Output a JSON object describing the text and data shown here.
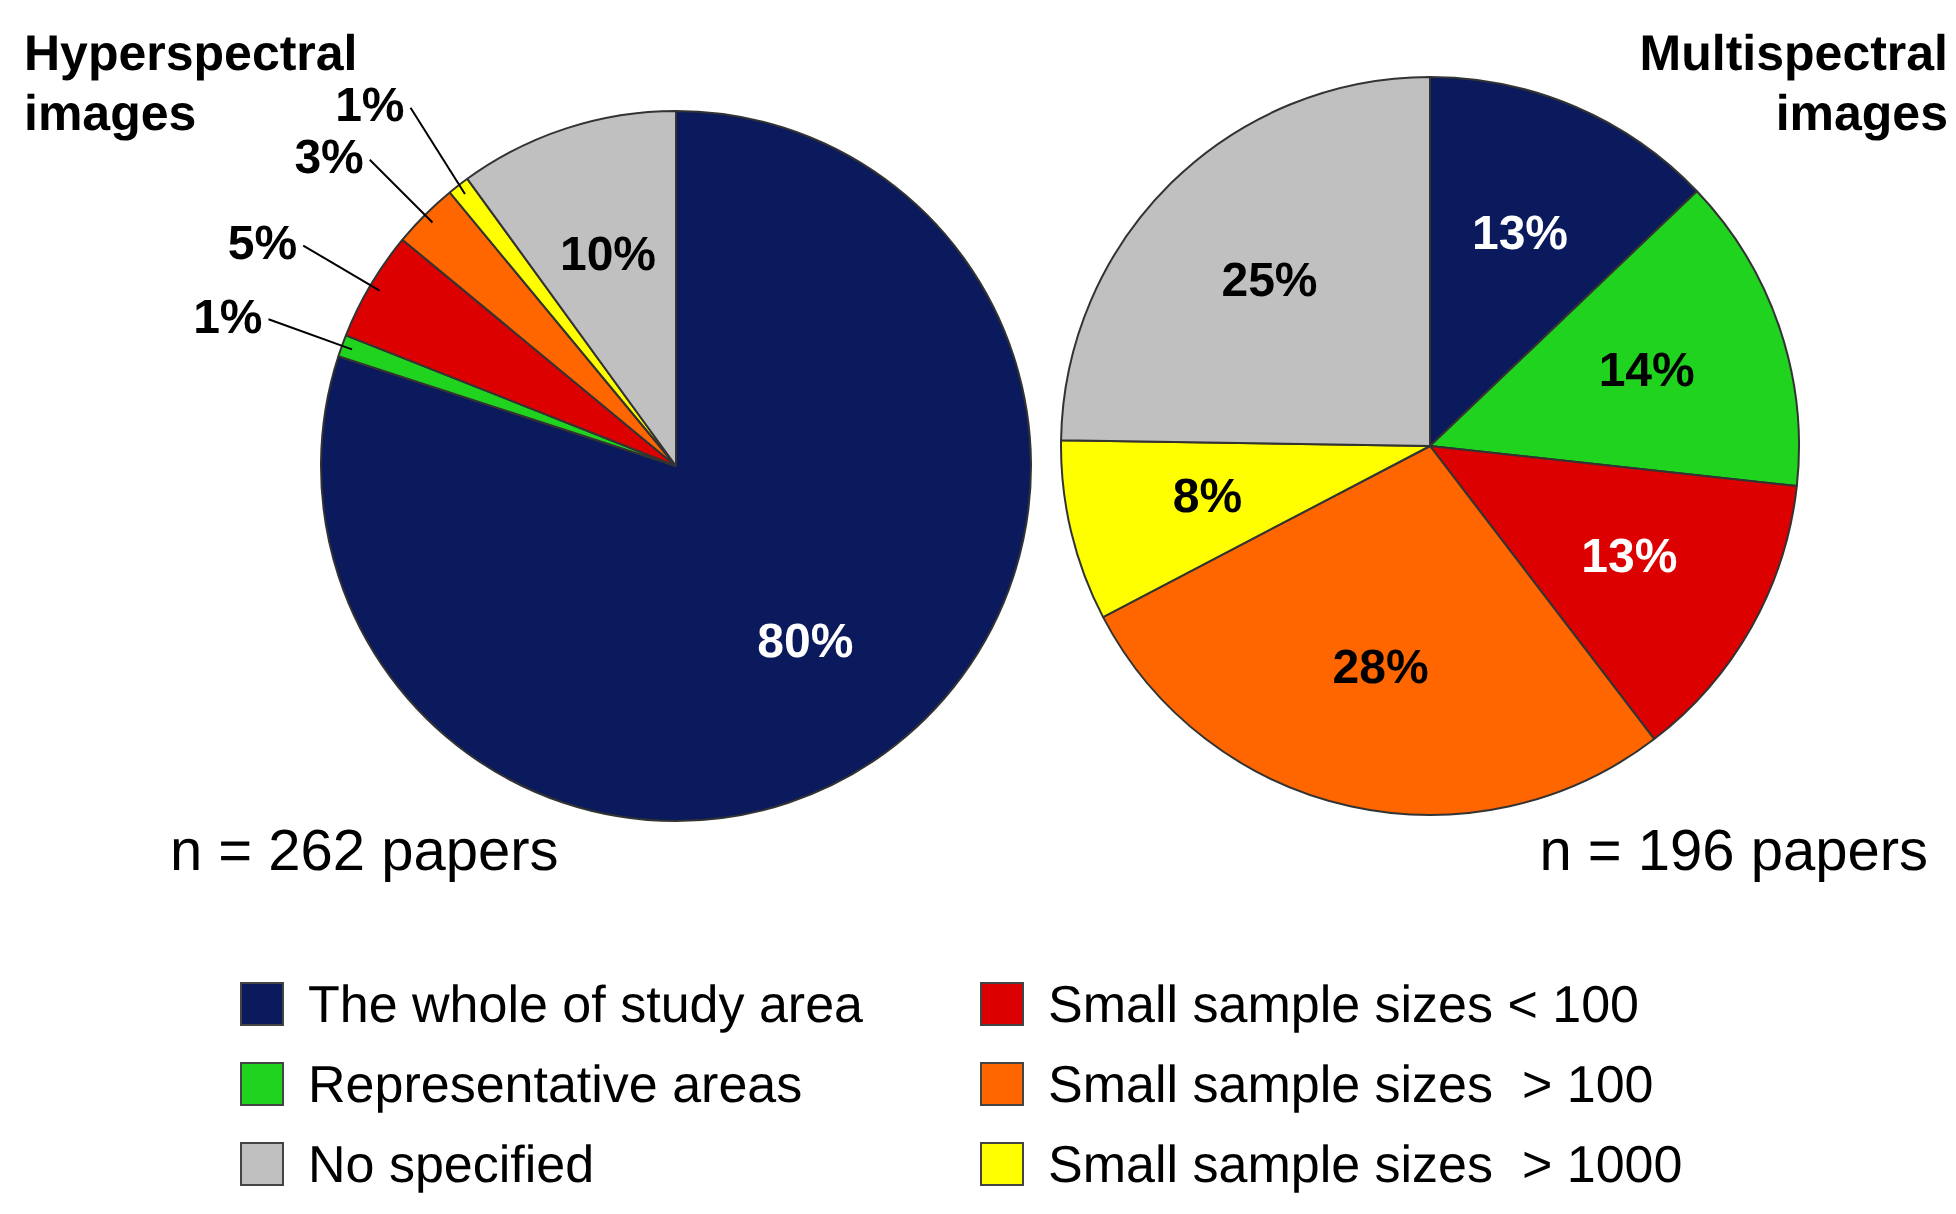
{
  "chart_data": [
    {
      "type": "pie",
      "title": "Hyperspectral images",
      "categories": [
        "The whole of study area",
        "Representative areas",
        "Small sample sizes < 100",
        "Small sample sizes  > 100",
        "Small sample sizes  > 1000",
        "No specified"
      ],
      "values": [
        80,
        1,
        5,
        3,
        1,
        10
      ],
      "value_labels": [
        "80%",
        "1%",
        "5%",
        "3%",
        "1%",
        "10%"
      ],
      "colors": [
        "#0a1a5c",
        "#1fd31f",
        "#dd0000",
        "#ff6600",
        "#ffff00",
        "#c0c0c0"
      ],
      "legend": "bottom",
      "annotations": [
        "n = 262 papers"
      ]
    },
    {
      "type": "pie",
      "title": "Multispectral images",
      "categories": [
        null,
        null,
        null,
        null,
        null,
        null
      ],
      "values": [
        13,
        14,
        13,
        28,
        8,
        25
      ],
      "value_labels": [
        "13%",
        "14%",
        "13%",
        "28%",
        "8%",
        "25%"
      ],
      "colors": [
        "#0a1a5c",
        "#1fd31f",
        "#dd0000",
        "#ff6600",
        "#ffff00",
        "#c0c0c0"
      ],
      "annotations": [
        "n = 196 papers"
      ]
    }
  ]
}
